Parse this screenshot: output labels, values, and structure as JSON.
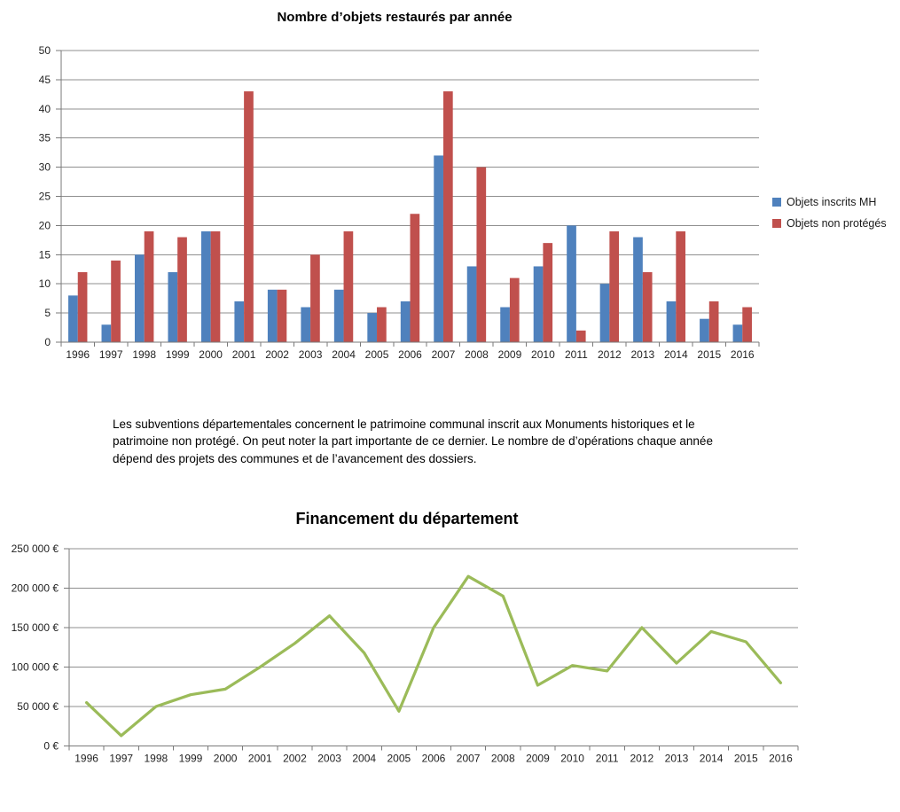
{
  "annotation": {
    "text": "Les subventions départementales concernent le patrimoine communal inscrit aux Monuments historiques et le patrimoine non protégé. On peut noter la part importante de ce dernier. Le nombre de d’opérations chaque année dépend des projets des communes et de l’avancement des dossiers."
  },
  "chart_data": [
    {
      "type": "bar",
      "title": "Nombre d’objets restaurés par année",
      "categories": [
        "1996",
        "1997",
        "1998",
        "1999",
        "2000",
        "2001",
        "2002",
        "2003",
        "2004",
        "2005",
        "2006",
        "2007",
        "2008",
        "2009",
        "2010",
        "2011",
        "2012",
        "2013",
        "2014",
        "2015",
        "2016"
      ],
      "series": [
        {
          "name": "Objets inscrits MH",
          "color": "#4F81BD",
          "values": [
            8,
            3,
            15,
            12,
            19,
            7,
            9,
            6,
            9,
            5,
            7,
            32,
            13,
            6,
            13,
            20,
            10,
            18,
            7,
            4,
            3
          ]
        },
        {
          "name": "Objets non protégés",
          "color": "#C0504D",
          "values": [
            12,
            14,
            19,
            18,
            19,
            43,
            9,
            15,
            19,
            6,
            22,
            43,
            30,
            11,
            17,
            2,
            19,
            12,
            19,
            7,
            6
          ]
        }
      ],
      "xlabel": "",
      "ylabel": "",
      "ylim": [
        0,
        50
      ],
      "ytick_step": 5,
      "grid": true,
      "grid_color": "#8f8f8f",
      "axis_color": "#7a7a7a",
      "legend_position": "right"
    },
    {
      "type": "line",
      "title": "Financement du département",
      "x": [
        "1996",
        "1997",
        "1998",
        "1999",
        "2000",
        "2001",
        "2002",
        "2003",
        "2004",
        "2005",
        "2006",
        "2007",
        "2008",
        "2009",
        "2010",
        "2011",
        "2012",
        "2013",
        "2014",
        "2015",
        "2016"
      ],
      "values": [
        55000,
        13000,
        50000,
        65000,
        72000,
        100000,
        130000,
        165000,
        118000,
        44000,
        150000,
        215000,
        190000,
        77000,
        102000,
        95000,
        150000,
        105000,
        145000,
        132000,
        80000
      ],
      "color": "#9BBB59",
      "xlabel": "",
      "ylabel": "",
      "ylim": [
        0,
        250000
      ],
      "ytick_step": 50000,
      "ytick_labels": [
        "0 €",
        "50 000 €",
        "100 000 €",
        "150 000 €",
        "200 000 €",
        "250 000 €"
      ],
      "grid": true,
      "grid_color": "#8f8f8f",
      "axis_color": "#7a7a7a",
      "legend_position": "none"
    }
  ]
}
